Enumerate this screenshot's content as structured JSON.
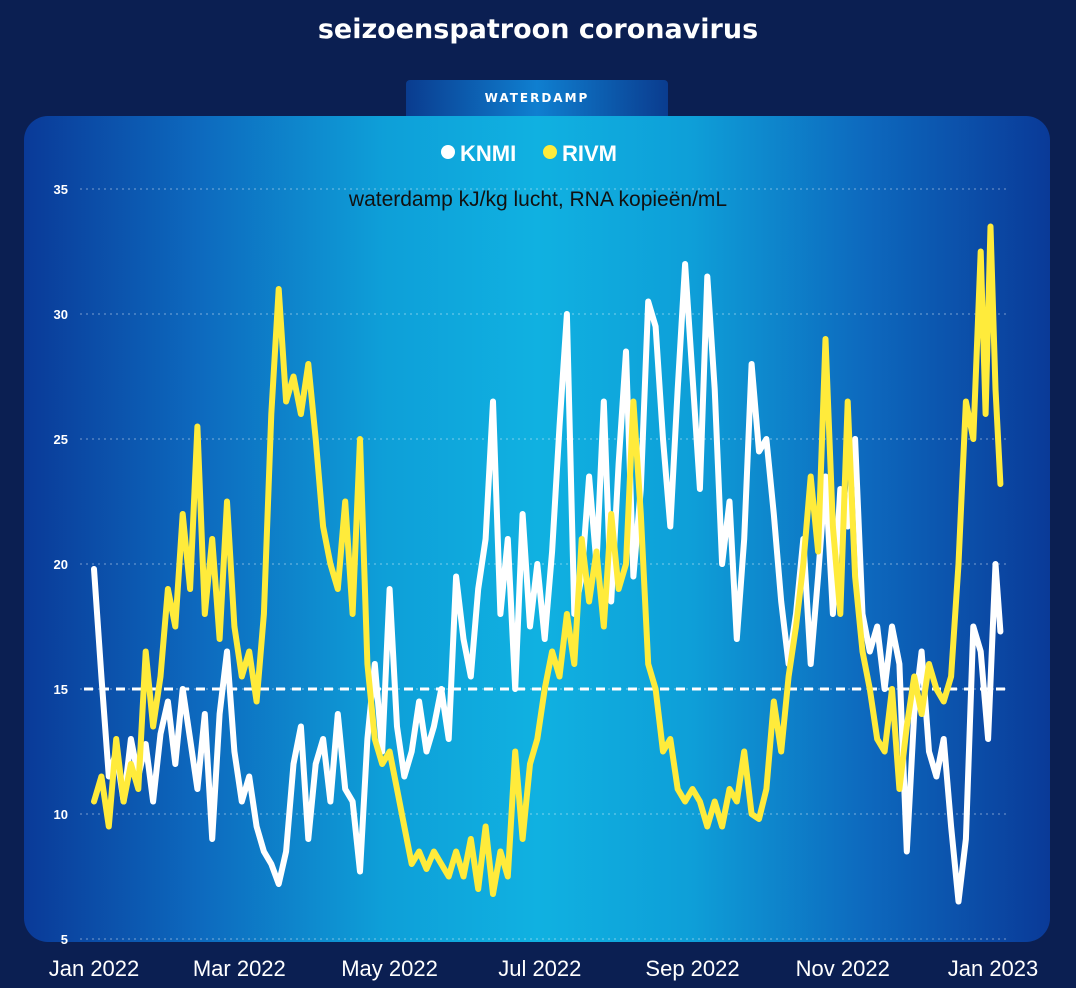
{
  "page": {
    "title": "seizoenspatroon coronavirus",
    "tab_label": "WATERDAMP"
  },
  "colors": {
    "knmi": "#ffffff",
    "rivm": "#ffeb3b",
    "background": "#0b1f52"
  },
  "chart_data": {
    "type": "line",
    "ylabel": "waterdamp kJ/kg lucht, RNA kopieën/mL",
    "legend_position": "top-center",
    "ylim": [
      5,
      35
    ],
    "yticks": [
      5,
      10,
      15,
      20,
      25,
      30,
      35
    ],
    "grid": true,
    "reference_line": 15,
    "x_tick_labels": [
      "Jan 2022",
      "Mar 2022",
      "May 2022",
      "Jul 2022",
      "Sep 2022",
      "Nov 2022",
      "Jan 2023"
    ],
    "x_tick_dates": [
      "2022-01-01",
      "2022-03-01",
      "2022-05-01",
      "2022-07-01",
      "2022-09-01",
      "2022-11-01",
      "2023-01-01"
    ],
    "x_domain": [
      "2022-01-01",
      "2023-01-01"
    ],
    "series": [
      {
        "name": "KNMI",
        "color": "#ffffff",
        "points": [
          [
            "2022-01-01",
            19.8
          ],
          [
            "2022-01-04",
            15.5
          ],
          [
            "2022-01-07",
            11.5
          ],
          [
            "2022-01-10",
            12.5
          ],
          [
            "2022-01-13",
            10.5
          ],
          [
            "2022-01-16",
            13.0
          ],
          [
            "2022-01-19",
            11.5
          ],
          [
            "2022-01-22",
            12.8
          ],
          [
            "2022-01-25",
            10.5
          ],
          [
            "2022-01-28",
            13.2
          ],
          [
            "2022-01-31",
            14.5
          ],
          [
            "2022-02-03",
            12.0
          ],
          [
            "2022-02-06",
            15.0
          ],
          [
            "2022-02-09",
            13.0
          ],
          [
            "2022-02-12",
            11.0
          ],
          [
            "2022-02-15",
            14.0
          ],
          [
            "2022-02-18",
            9.0
          ],
          [
            "2022-02-21",
            14.0
          ],
          [
            "2022-02-24",
            16.5
          ],
          [
            "2022-02-27",
            12.5
          ],
          [
            "2022-03-02",
            10.5
          ],
          [
            "2022-03-05",
            11.5
          ],
          [
            "2022-03-08",
            9.5
          ],
          [
            "2022-03-11",
            8.5
          ],
          [
            "2022-03-14",
            8.0
          ],
          [
            "2022-03-17",
            7.2
          ],
          [
            "2022-03-20",
            8.5
          ],
          [
            "2022-03-23",
            12.0
          ],
          [
            "2022-03-26",
            13.5
          ],
          [
            "2022-03-29",
            9.0
          ],
          [
            "2022-04-01",
            12.0
          ],
          [
            "2022-04-04",
            13.0
          ],
          [
            "2022-04-07",
            10.5
          ],
          [
            "2022-04-10",
            14.0
          ],
          [
            "2022-04-13",
            11.0
          ],
          [
            "2022-04-16",
            10.5
          ],
          [
            "2022-04-19",
            7.7
          ],
          [
            "2022-04-22",
            13.0
          ],
          [
            "2022-04-25",
            16.0
          ],
          [
            "2022-04-28",
            12.5
          ],
          [
            "2022-05-01",
            19.0
          ],
          [
            "2022-05-04",
            13.5
          ],
          [
            "2022-05-07",
            11.5
          ],
          [
            "2022-05-10",
            12.5
          ],
          [
            "2022-05-13",
            14.5
          ],
          [
            "2022-05-16",
            12.5
          ],
          [
            "2022-05-19",
            13.5
          ],
          [
            "2022-05-22",
            15.0
          ],
          [
            "2022-05-25",
            13.0
          ],
          [
            "2022-05-28",
            19.5
          ],
          [
            "2022-05-31",
            17.0
          ],
          [
            "2022-06-03",
            15.5
          ],
          [
            "2022-06-06",
            19.0
          ],
          [
            "2022-06-09",
            21.0
          ],
          [
            "2022-06-12",
            26.5
          ],
          [
            "2022-06-15",
            18.0
          ],
          [
            "2022-06-18",
            21.0
          ],
          [
            "2022-06-21",
            15.0
          ],
          [
            "2022-06-24",
            22.0
          ],
          [
            "2022-06-27",
            17.5
          ],
          [
            "2022-06-30",
            20.0
          ],
          [
            "2022-07-03",
            17.0
          ],
          [
            "2022-07-06",
            20.5
          ],
          [
            "2022-07-09",
            25.5
          ],
          [
            "2022-07-12",
            30.0
          ],
          [
            "2022-07-15",
            18.0
          ],
          [
            "2022-07-18",
            19.5
          ],
          [
            "2022-07-21",
            23.5
          ],
          [
            "2022-07-24",
            20.0
          ],
          [
            "2022-07-27",
            26.5
          ],
          [
            "2022-07-30",
            18.5
          ],
          [
            "2022-08-02",
            24.0
          ],
          [
            "2022-08-05",
            28.5
          ],
          [
            "2022-08-08",
            19.5
          ],
          [
            "2022-08-11",
            23.0
          ],
          [
            "2022-08-14",
            30.5
          ],
          [
            "2022-08-17",
            29.5
          ],
          [
            "2022-08-20",
            25.0
          ],
          [
            "2022-08-23",
            21.5
          ],
          [
            "2022-08-26",
            27.0
          ],
          [
            "2022-08-29",
            32.0
          ],
          [
            "2022-09-01",
            27.5
          ],
          [
            "2022-09-04",
            23.0
          ],
          [
            "2022-09-07",
            31.5
          ],
          [
            "2022-09-10",
            27.0
          ],
          [
            "2022-09-13",
            20.0
          ],
          [
            "2022-09-16",
            22.5
          ],
          [
            "2022-09-19",
            17.0
          ],
          [
            "2022-09-22",
            21.0
          ],
          [
            "2022-09-25",
            28.0
          ],
          [
            "2022-09-28",
            24.5
          ],
          [
            "2022-10-01",
            25.0
          ],
          [
            "2022-10-04",
            22.0
          ],
          [
            "2022-10-07",
            18.5
          ],
          [
            "2022-10-10",
            16.0
          ],
          [
            "2022-10-13",
            18.0
          ],
          [
            "2022-10-16",
            21.0
          ],
          [
            "2022-10-19",
            16.0
          ],
          [
            "2022-10-22",
            19.5
          ],
          [
            "2022-10-25",
            23.5
          ],
          [
            "2022-10-28",
            18.0
          ],
          [
            "2022-10-31",
            23.0
          ],
          [
            "2022-11-03",
            21.5
          ],
          [
            "2022-11-06",
            25.0
          ],
          [
            "2022-11-09",
            18.0
          ],
          [
            "2022-11-12",
            16.5
          ],
          [
            "2022-11-15",
            17.5
          ],
          [
            "2022-11-18",
            15.0
          ],
          [
            "2022-11-21",
            17.5
          ],
          [
            "2022-11-24",
            16.0
          ],
          [
            "2022-11-27",
            8.5
          ],
          [
            "2022-11-30",
            14.0
          ],
          [
            "2022-12-03",
            16.5
          ],
          [
            "2022-12-06",
            12.5
          ],
          [
            "2022-12-09",
            11.5
          ],
          [
            "2022-12-12",
            13.0
          ],
          [
            "2022-12-15",
            9.5
          ],
          [
            "2022-12-18",
            6.5
          ],
          [
            "2022-12-21",
            9.0
          ],
          [
            "2022-12-24",
            17.5
          ],
          [
            "2022-12-27",
            16.5
          ],
          [
            "2022-12-30",
            13.0
          ],
          [
            "2023-01-02",
            20.0
          ],
          [
            "2023-01-04",
            17.3
          ]
        ]
      },
      {
        "name": "RIVM",
        "color": "#ffeb3b",
        "points": [
          [
            "2022-01-01",
            10.5
          ],
          [
            "2022-01-04",
            11.5
          ],
          [
            "2022-01-07",
            9.5
          ],
          [
            "2022-01-10",
            13.0
          ],
          [
            "2022-01-13",
            10.5
          ],
          [
            "2022-01-16",
            12.0
          ],
          [
            "2022-01-19",
            11.0
          ],
          [
            "2022-01-22",
            16.5
          ],
          [
            "2022-01-25",
            13.5
          ],
          [
            "2022-01-28",
            15.5
          ],
          [
            "2022-01-31",
            19.0
          ],
          [
            "2022-02-03",
            17.5
          ],
          [
            "2022-02-06",
            22.0
          ],
          [
            "2022-02-09",
            19.0
          ],
          [
            "2022-02-12",
            25.5
          ],
          [
            "2022-02-15",
            18.0
          ],
          [
            "2022-02-18",
            21.0
          ],
          [
            "2022-02-21",
            17.0
          ],
          [
            "2022-02-24",
            22.5
          ],
          [
            "2022-02-27",
            17.5
          ],
          [
            "2022-03-02",
            15.5
          ],
          [
            "2022-03-05",
            16.5
          ],
          [
            "2022-03-08",
            14.5
          ],
          [
            "2022-03-11",
            18.0
          ],
          [
            "2022-03-14",
            26.0
          ],
          [
            "2022-03-17",
            31.0
          ],
          [
            "2022-03-20",
            26.5
          ],
          [
            "2022-03-23",
            27.5
          ],
          [
            "2022-03-26",
            26.0
          ],
          [
            "2022-03-29",
            28.0
          ],
          [
            "2022-04-01",
            25.0
          ],
          [
            "2022-04-04",
            21.5
          ],
          [
            "2022-04-07",
            20.0
          ],
          [
            "2022-04-10",
            19.0
          ],
          [
            "2022-04-13",
            22.5
          ],
          [
            "2022-04-16",
            18.0
          ],
          [
            "2022-04-19",
            25.0
          ],
          [
            "2022-04-22",
            16.0
          ],
          [
            "2022-04-25",
            13.0
          ],
          [
            "2022-04-28",
            12.0
          ],
          [
            "2022-05-01",
            12.5
          ],
          [
            "2022-05-04",
            11.0
          ],
          [
            "2022-05-07",
            9.5
          ],
          [
            "2022-05-10",
            8.0
          ],
          [
            "2022-05-13",
            8.5
          ],
          [
            "2022-05-16",
            7.8
          ],
          [
            "2022-05-19",
            8.5
          ],
          [
            "2022-05-22",
            8.0
          ],
          [
            "2022-05-25",
            7.5
          ],
          [
            "2022-05-28",
            8.5
          ],
          [
            "2022-05-31",
            7.5
          ],
          [
            "2022-06-03",
            9.0
          ],
          [
            "2022-06-06",
            7.0
          ],
          [
            "2022-06-09",
            9.5
          ],
          [
            "2022-06-12",
            6.8
          ],
          [
            "2022-06-15",
            8.5
          ],
          [
            "2022-06-18",
            7.5
          ],
          [
            "2022-06-21",
            12.5
          ],
          [
            "2022-06-24",
            9.0
          ],
          [
            "2022-06-27",
            12.0
          ],
          [
            "2022-06-30",
            13.0
          ],
          [
            "2022-07-03",
            15.0
          ],
          [
            "2022-07-06",
            16.5
          ],
          [
            "2022-07-09",
            15.5
          ],
          [
            "2022-07-12",
            18.0
          ],
          [
            "2022-07-15",
            16.0
          ],
          [
            "2022-07-18",
            21.0
          ],
          [
            "2022-07-21",
            18.5
          ],
          [
            "2022-07-24",
            20.5
          ],
          [
            "2022-07-27",
            17.5
          ],
          [
            "2022-07-30",
            22.0
          ],
          [
            "2022-08-02",
            19.0
          ],
          [
            "2022-08-05",
            20.0
          ],
          [
            "2022-08-08",
            26.5
          ],
          [
            "2022-08-11",
            22.0
          ],
          [
            "2022-08-14",
            16.0
          ],
          [
            "2022-08-17",
            15.0
          ],
          [
            "2022-08-20",
            12.5
          ],
          [
            "2022-08-23",
            13.0
          ],
          [
            "2022-08-26",
            11.0
          ],
          [
            "2022-08-29",
            10.5
          ],
          [
            "2022-09-01",
            11.0
          ],
          [
            "2022-09-04",
            10.5
          ],
          [
            "2022-09-07",
            9.5
          ],
          [
            "2022-09-10",
            10.5
          ],
          [
            "2022-09-13",
            9.5
          ],
          [
            "2022-09-16",
            11.0
          ],
          [
            "2022-09-19",
            10.5
          ],
          [
            "2022-09-22",
            12.5
          ],
          [
            "2022-09-25",
            10.0
          ],
          [
            "2022-09-28",
            9.8
          ],
          [
            "2022-10-01",
            11.0
          ],
          [
            "2022-10-04",
            14.5
          ],
          [
            "2022-10-07",
            12.5
          ],
          [
            "2022-10-10",
            15.5
          ],
          [
            "2022-10-13",
            17.5
          ],
          [
            "2022-10-16",
            20.0
          ],
          [
            "2022-10-19",
            23.5
          ],
          [
            "2022-10-22",
            20.5
          ],
          [
            "2022-10-25",
            29.0
          ],
          [
            "2022-10-28",
            21.5
          ],
          [
            "2022-10-31",
            18.0
          ],
          [
            "2022-11-03",
            26.5
          ],
          [
            "2022-11-06",
            19.5
          ],
          [
            "2022-11-09",
            16.5
          ],
          [
            "2022-11-12",
            15.0
          ],
          [
            "2022-11-15",
            13.0
          ],
          [
            "2022-11-18",
            12.5
          ],
          [
            "2022-11-21",
            15.0
          ],
          [
            "2022-11-24",
            11.0
          ],
          [
            "2022-11-27",
            13.5
          ],
          [
            "2022-11-30",
            15.5
          ],
          [
            "2022-12-03",
            14.0
          ],
          [
            "2022-12-06",
            16.0
          ],
          [
            "2022-12-09",
            15.0
          ],
          [
            "2022-12-12",
            14.5
          ],
          [
            "2022-12-15",
            15.5
          ],
          [
            "2022-12-18",
            20.0
          ],
          [
            "2022-12-21",
            26.5
          ],
          [
            "2022-12-24",
            25.0
          ],
          [
            "2022-12-27",
            32.5
          ],
          [
            "2022-12-29",
            26.0
          ],
          [
            "2022-12-31",
            33.5
          ],
          [
            "2023-01-02",
            27.0
          ],
          [
            "2023-01-04",
            23.2
          ]
        ]
      }
    ]
  }
}
